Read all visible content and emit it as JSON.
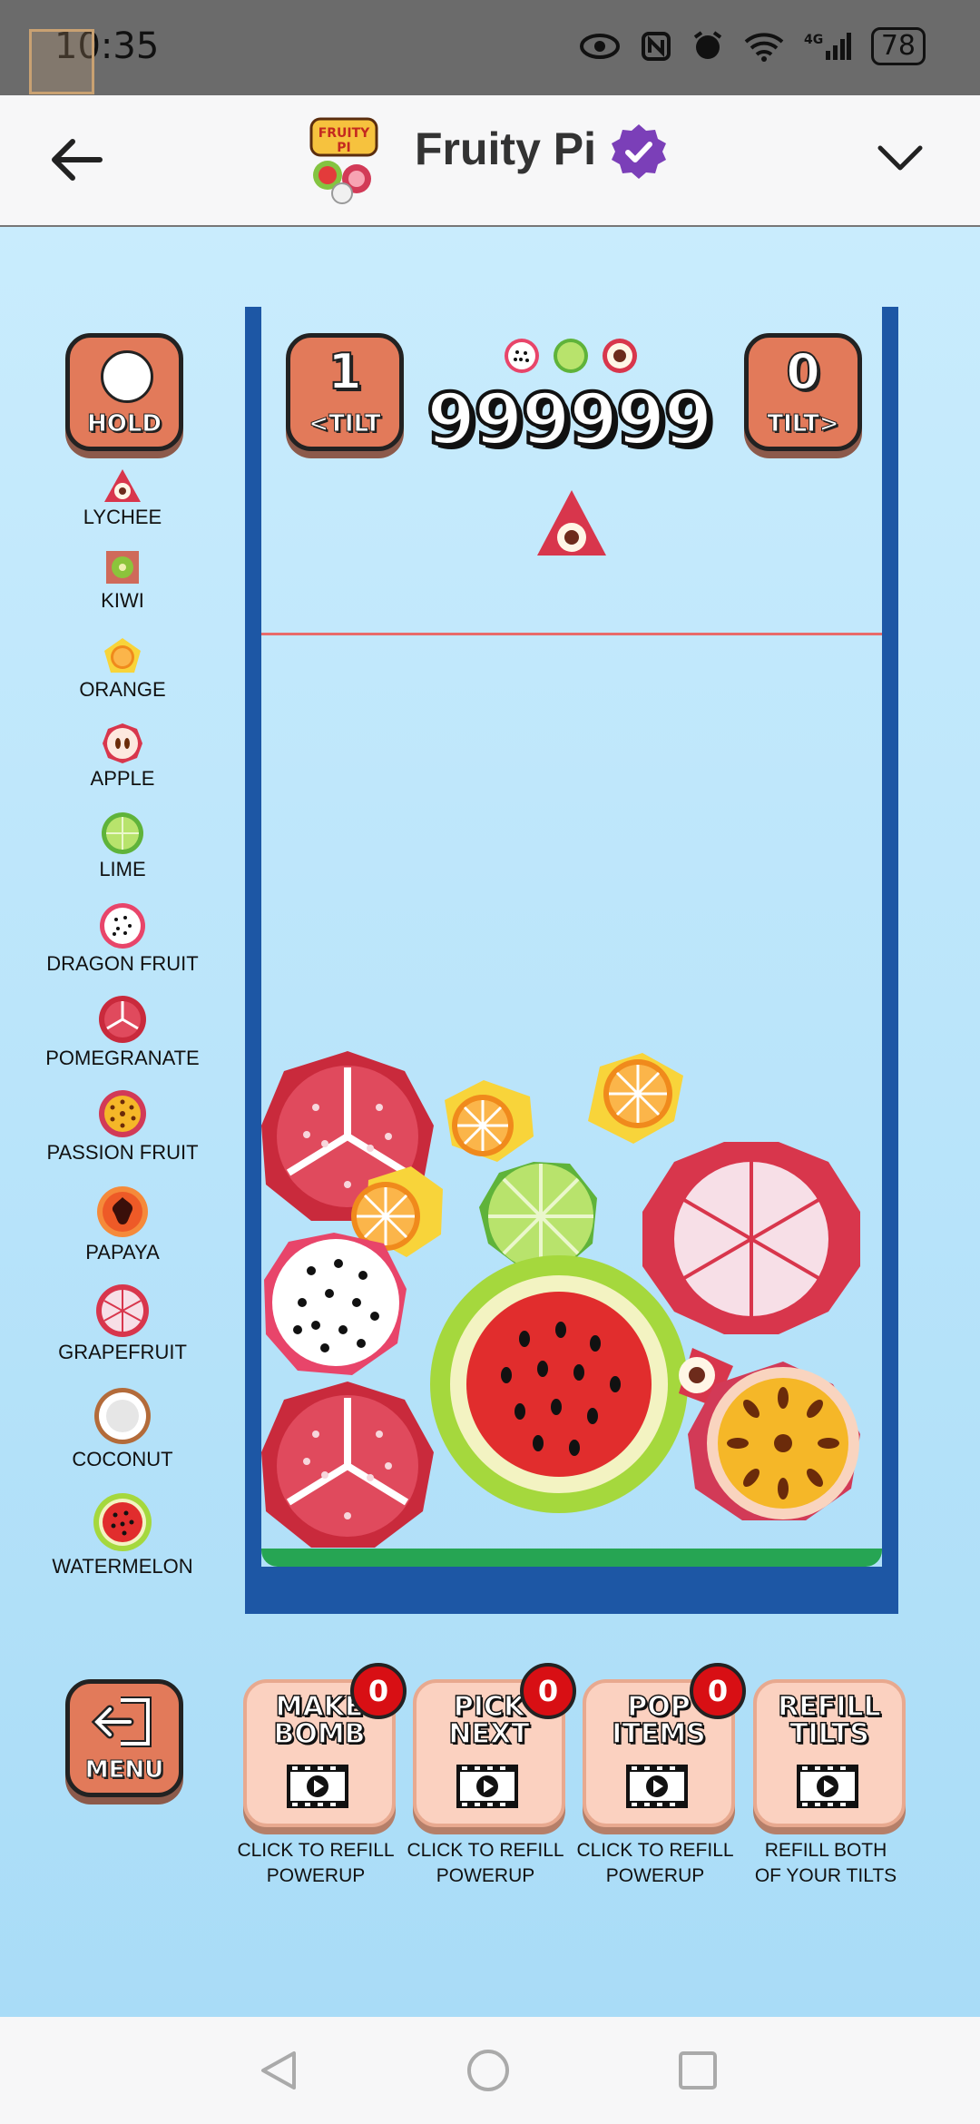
{
  "status_bar": {
    "time": "10:35",
    "battery": "78",
    "icons": [
      "eye-icon",
      "nfc-icon",
      "alarm-icon",
      "wifi-icon",
      "4g-signal-icon"
    ]
  },
  "app_bar": {
    "title": "Fruity Pi",
    "logo_text": "FRUITY PI"
  },
  "game": {
    "hold_label": "HOLD",
    "tilt_left": {
      "count": "1",
      "label": "<TILT"
    },
    "tilt_right": {
      "count": "0",
      "label": "TILT>"
    },
    "score": "999999",
    "menu_label": "MENU"
  },
  "legend": [
    "LYCHEE",
    "KIWI",
    "ORANGE",
    "APPLE",
    "LIME",
    "DRAGON FRUIT",
    "POMEGRANATE",
    "PASSION FRUIT",
    "PAPAYA",
    "GRAPEFRUIT",
    "COCONUT",
    "WATERMELON"
  ],
  "powerups": [
    {
      "line1": "MAKE",
      "line2": "BOMB",
      "count": "0",
      "caption1": "CLICK TO REFILL",
      "caption2": "POWERUP"
    },
    {
      "line1": "PICK",
      "line2": "NEXT",
      "count": "0",
      "caption1": "CLICK TO REFILL",
      "caption2": "POWERUP"
    },
    {
      "line1": "POP",
      "line2": "ITEMS",
      "count": "0",
      "caption1": "CLICK TO REFILL",
      "caption2": "POWERUP"
    },
    {
      "line1": "REFILL",
      "line2": "TILTS",
      "caption1": "REFILL BOTH",
      "caption2": "OF YOUR TILTS"
    }
  ],
  "colors": {
    "jar": "#1d57a5",
    "button": "#e27a5a",
    "powerup_bg": "#fbd1c0",
    "badge": "#d80f14",
    "background": "#bfe6fb"
  }
}
